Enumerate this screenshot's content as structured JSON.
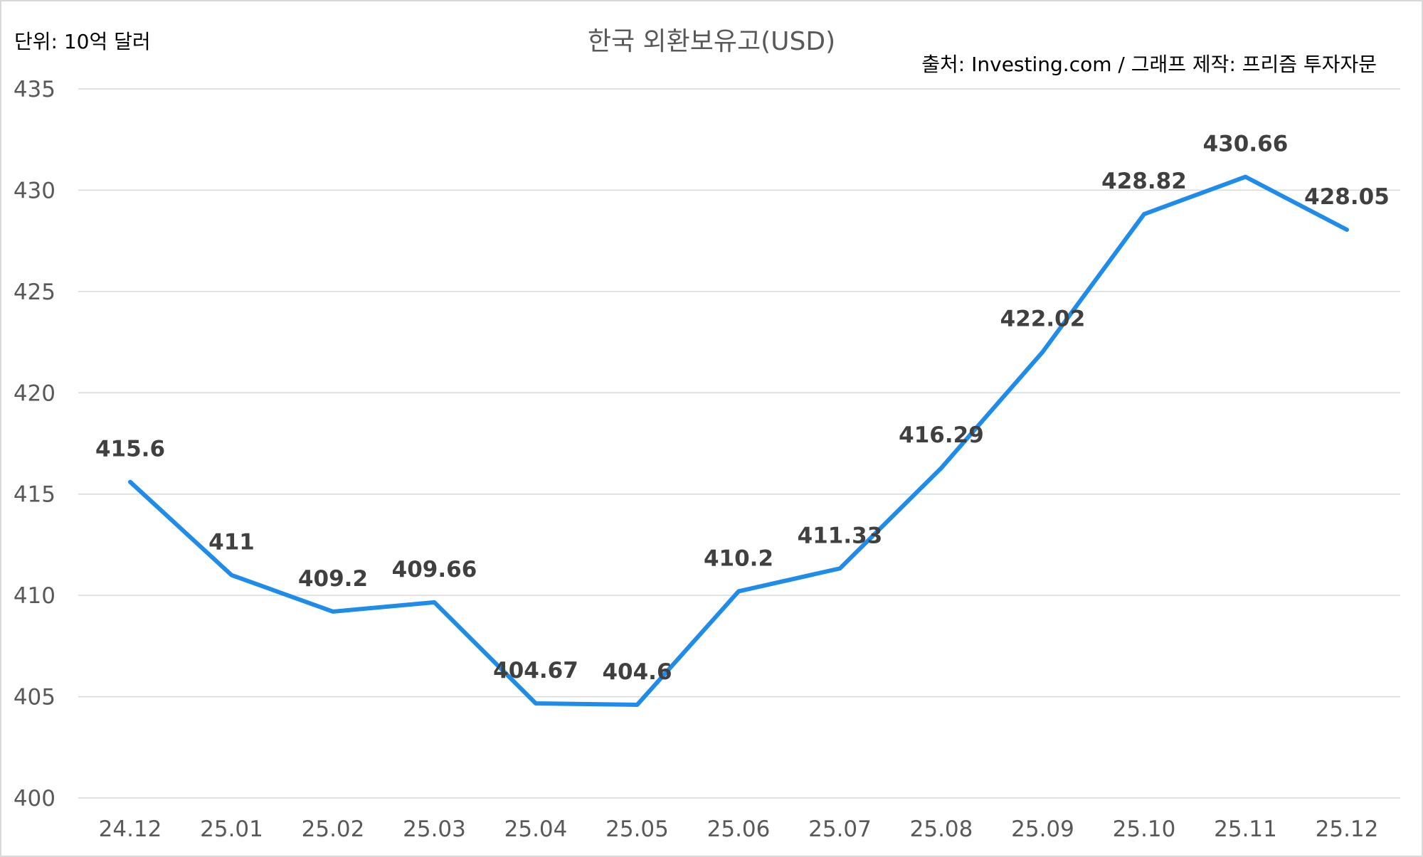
{
  "chart_data": {
    "type": "line",
    "title": "한국 외환보유고(USD)",
    "unit_note": "단위: 10억 달러",
    "source_note": "출처: Investing.com / 그래프 제작: 프리즘 투자자문",
    "categories": [
      "24.12",
      "25.01",
      "25.02",
      "25.03",
      "25.04",
      "25.05",
      "25.06",
      "25.07",
      "25.08",
      "25.09",
      "25.10",
      "25.11",
      "25.12"
    ],
    "series": [
      {
        "values": [
          415.6,
          411,
          409.2,
          409.66,
          404.67,
          404.6,
          410.2,
          411.33,
          416.29,
          422.02,
          428.82,
          430.66,
          428.05
        ],
        "labels": [
          "415.6",
          "411",
          "409.2",
          "409.66",
          "404.67",
          "404.6",
          "410.2",
          "411.33",
          "416.29",
          "422.02",
          "428.82",
          "430.66",
          "428.05"
        ],
        "color": "#1f8ceb"
      }
    ],
    "ylim": [
      400,
      435
    ],
    "yticks": [
      "400",
      "405",
      "410",
      "415",
      "420",
      "425",
      "430",
      "435"
    ],
    "xlabel": "",
    "ylabel": "",
    "grid": true,
    "legend": "none"
  }
}
